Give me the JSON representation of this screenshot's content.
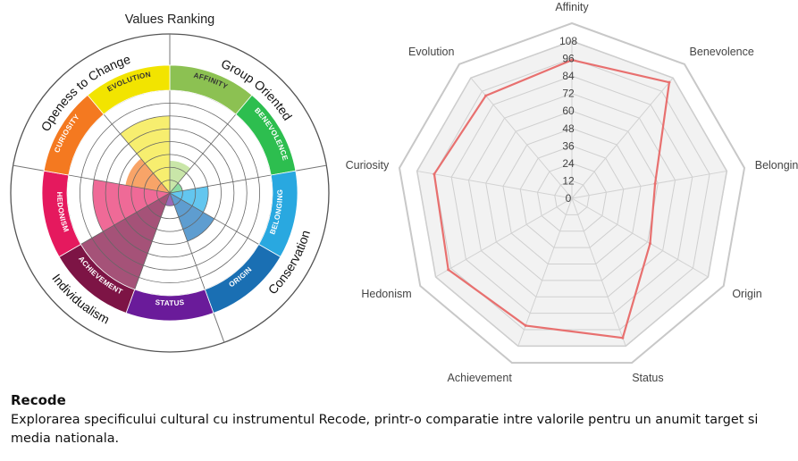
{
  "chart_data": [
    {
      "type": "polar-area",
      "title": "Values Ranking",
      "rings": 8,
      "groups": [
        {
          "name": "Openess to Change",
          "members": [
            "EVOLUTION",
            "CURIOSITY"
          ]
        },
        {
          "name": "Group Oriented",
          "members": [
            "AFFINITY",
            "BENEVOLENCE"
          ]
        },
        {
          "name": "Conservation",
          "members": [
            "BELONGING",
            "ORIGIN"
          ]
        },
        {
          "name": "Individualism",
          "members": [
            "STATUS",
            "ACHIEVEMENT",
            "HEDONISM"
          ]
        }
      ],
      "segments": [
        {
          "label": "AFFINITY",
          "value": 2.5,
          "band_color": "#8cc152",
          "fill_color": "#c9e6a8"
        },
        {
          "label": "BENEVOLENCE",
          "value": 1,
          "band_color": "#2dbe4f",
          "fill_color": "#8fdca2"
        },
        {
          "label": "BELONGING",
          "value": 3,
          "band_color": "#29a8e0",
          "fill_color": "#63c6ef"
        },
        {
          "label": "ORIGIN",
          "value": 4,
          "band_color": "#1a6fb3",
          "fill_color": "#5e9dd0"
        },
        {
          "label": "STATUS",
          "value": 1,
          "band_color": "#6a1b9a",
          "fill_color": "#9b6ab8"
        },
        {
          "label": "ACHIEVEMENT",
          "value": 8,
          "band_color": "#7d1445",
          "fill_color": "#a55278"
        },
        {
          "label": "HEDONISM",
          "value": 6,
          "band_color": "#e5195e",
          "fill_color": "#ef6a97"
        },
        {
          "label": "CURIOSITY",
          "value": 3.5,
          "band_color": "#f47920",
          "fill_color": "#f8a468"
        },
        {
          "label": "EVOLUTION",
          "value": 6,
          "band_color": "#f2e400",
          "fill_color": "#f7ee6f"
        }
      ]
    },
    {
      "type": "radar",
      "title": "",
      "axes": [
        "Affinity",
        "Benevolence",
        "Belonging",
        "Origin",
        "Status",
        "Achievement",
        "Hedonism",
        "Curiosity",
        "Evolution"
      ],
      "ticks": [
        0,
        12,
        24,
        36,
        48,
        60,
        72,
        84,
        96,
        108
      ],
      "range": [
        0,
        108
      ],
      "series": [
        {
          "values": [
            95,
            104,
            58,
            62,
            102,
            93,
            98,
            96,
            92
          ],
          "color": "#e8706f"
        }
      ]
    }
  ],
  "caption": {
    "title": "Recode",
    "body": "Explorarea specificului cultural cu instrumentul Recode, printr-o comparatie intre valorile pentru un anumit target si media nationala."
  }
}
